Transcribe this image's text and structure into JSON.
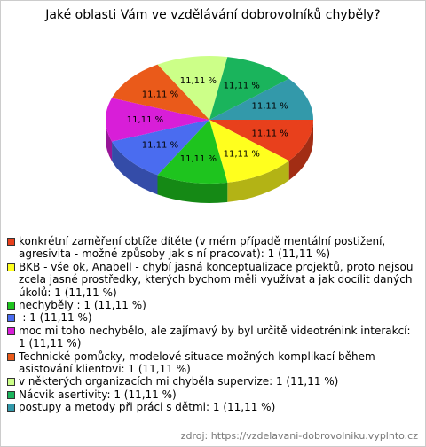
{
  "chart_data": {
    "type": "pie",
    "title": "Jaké oblasti Vám ve vzdělávání dobrovolníků chyběly?",
    "categories": [
      "konkrétní zaměření obtíže dítěte (v mém případě mentální postižení, agresivita - možné způsoby jak s ní pracovat): 1 (11,11 %)",
      "BKB - vše ok, Anabell - chybí jasná konceptualizace projektů, proto nejsou zcela jasné prostředky, kterých bychom měli využívat a jak docílit daných úkolů: 1 (11,11 %)",
      "nechyběly : 1 (11,11 %)",
      "-: 1 (11,11 %)",
      "moc mi toho nechybělo, ale zajímavý by byl určitě videotrénink interakcí: 1 (11,11 %)",
      "Technické pomůcky, modelové situace možných komplikací během asistování klientovi: 1 (11,11 %)",
      "v některých organizacích mi chyběla supervize: 1 (11,11 %)",
      "Nácvik asertivity: 1 (11,11 %)",
      "postupy a metody při práci s dětmi: 1 (11,11 %)"
    ],
    "values": [
      11.11,
      11.11,
      11.11,
      11.11,
      11.11,
      11.11,
      11.11,
      11.11,
      11.11
    ],
    "value_labels": [
      "11,11 %",
      "11,11 %",
      "11,11 %",
      "11,11 %",
      "11,11 %",
      "11,11 %",
      "11,11 %",
      "11,11 %",
      "11,11 %"
    ],
    "colors": [
      "#e8401c",
      "#ffff1e",
      "#1ec41e",
      "#4a6cf0",
      "#d81ed8",
      "#ea5a1a",
      "#ccff88",
      "#1ab45c",
      "#3399aa"
    ],
    "source": "zdroj: https://vzdelavani-dobrovolniku.vyplnto.cz"
  }
}
